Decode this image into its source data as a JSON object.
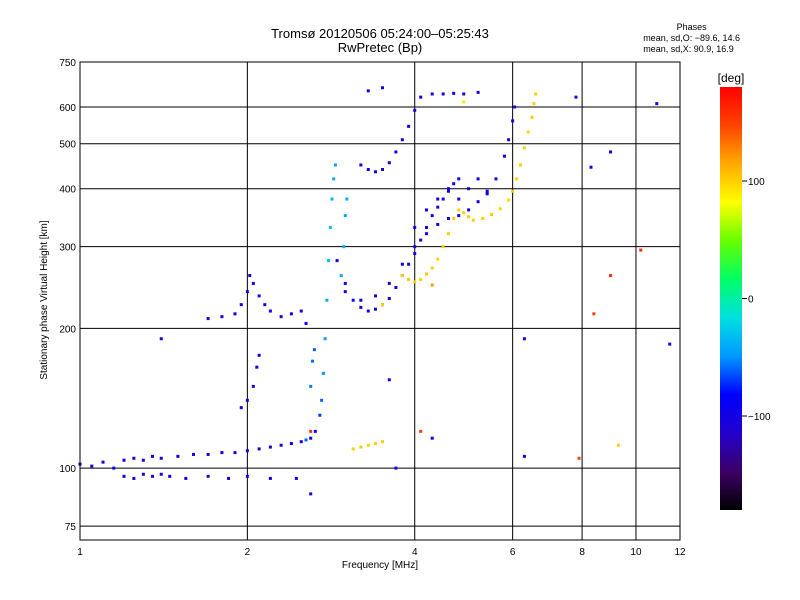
{
  "header": {
    "title": "Tromsø 20120506 05:24:00–05:25:43",
    "subtitle": "RwPretec (Bp)"
  },
  "phases": {
    "heading": "Phases",
    "line_o": "mean, sd,O: −89.6, 14.6",
    "line_x": "mean, sd,X:  90.9, 16.9"
  },
  "colorbar": {
    "label": "[deg]",
    "ticks": [
      {
        "value": 100,
        "label": "100"
      },
      {
        "value": 0,
        "label": "0"
      },
      {
        "value": -100,
        "label": "−100"
      }
    ],
    "range": [
      -180,
      180
    ],
    "colors": [
      "#000000",
      "#3d0066",
      "#2200cc",
      "#0000ff",
      "#0099ff",
      "#00e0e0",
      "#00ff66",
      "#66ff00",
      "#ffff00",
      "#ffaa00",
      "#ff4400",
      "#ff0000"
    ]
  },
  "chart_data": {
    "type": "scatter",
    "xlabel": "Frequency [MHz]",
    "ylabel": "Stationary phase Virtual Height [km]",
    "xscale": "log",
    "yscale": "log",
    "xlim": [
      1,
      12
    ],
    "ylim": [
      70,
      750
    ],
    "xticks": [
      {
        "value": 1,
        "label": "1"
      },
      {
        "value": 2,
        "label": "2"
      },
      {
        "value": 4,
        "label": "4"
      },
      {
        "value": 6,
        "label": "6"
      },
      {
        "value": 8,
        "label": "8"
      },
      {
        "value": 10,
        "label": "10"
      },
      {
        "value": 12,
        "label": "12"
      }
    ],
    "yticks": [
      {
        "value": 75,
        "label": "75"
      },
      {
        "value": 100,
        "label": "100"
      },
      {
        "value": 200,
        "label": "200"
      },
      {
        "value": 300,
        "label": "300"
      },
      {
        "value": 400,
        "label": "400"
      },
      {
        "value": 500,
        "label": "500"
      },
      {
        "value": 600,
        "label": "600"
      },
      {
        "value": 750,
        "label": "750"
      }
    ],
    "grid": true,
    "series": [
      {
        "points": [
          [
            1.0,
            102,
            -100
          ],
          [
            1.05,
            101,
            -105
          ],
          [
            1.1,
            103,
            -98
          ],
          [
            1.15,
            100,
            -102
          ],
          [
            1.2,
            104,
            -95
          ],
          [
            1.25,
            105,
            -100
          ],
          [
            1.3,
            104,
            -110
          ],
          [
            1.35,
            106,
            -97
          ],
          [
            1.4,
            105,
            -103
          ],
          [
            1.5,
            106,
            -100
          ],
          [
            1.6,
            107,
            -98
          ],
          [
            1.7,
            107,
            -105
          ],
          [
            1.8,
            108,
            -100
          ],
          [
            1.9,
            108,
            -96
          ],
          [
            2.0,
            109,
            -102
          ],
          [
            2.1,
            110,
            -99
          ],
          [
            2.2,
            111,
            -104
          ],
          [
            2.3,
            112,
            -100
          ],
          [
            2.4,
            113,
            -95
          ],
          [
            2.5,
            114,
            -100
          ],
          [
            2.6,
            116,
            -90
          ],
          [
            2.65,
            120,
            -80
          ],
          [
            2.7,
            130,
            -70
          ],
          [
            2.72,
            140,
            -60
          ],
          [
            2.74,
            160,
            -50
          ],
          [
            2.76,
            190,
            -45
          ],
          [
            2.78,
            230,
            -40
          ],
          [
            2.8,
            280,
            -35
          ],
          [
            2.82,
            330,
            -30
          ],
          [
            2.84,
            380,
            -35
          ],
          [
            2.86,
            420,
            -40
          ],
          [
            2.88,
            450,
            -45
          ],
          [
            1.2,
            96,
            -100
          ],
          [
            1.25,
            95,
            -105
          ],
          [
            1.3,
            97,
            -100
          ],
          [
            1.35,
            96,
            -98
          ],
          [
            1.4,
            97,
            -103
          ],
          [
            1.45,
            96,
            -100
          ],
          [
            1.55,
            95,
            -102
          ],
          [
            1.7,
            96,
            -100
          ],
          [
            1.85,
            95,
            -99
          ],
          [
            2.0,
            96,
            -101
          ],
          [
            1.7,
            210,
            -100
          ],
          [
            1.8,
            212,
            -98
          ],
          [
            1.9,
            215,
            -102
          ],
          [
            1.95,
            225,
            -100
          ],
          [
            2.0,
            240,
            -97
          ],
          [
            2.02,
            260,
            -103
          ],
          [
            2.05,
            250,
            -100
          ],
          [
            2.1,
            235,
            -99
          ],
          [
            2.15,
            225,
            -101
          ],
          [
            2.2,
            218,
            -100
          ],
          [
            2.3,
            212,
            -104
          ],
          [
            2.4,
            215,
            -98
          ],
          [
            2.5,
            218,
            -100
          ],
          [
            2.55,
            205,
            -95
          ],
          [
            1.95,
            135,
            -100
          ],
          [
            2.0,
            140,
            -102
          ],
          [
            2.05,
            150,
            -98
          ],
          [
            2.08,
            165,
            -100
          ],
          [
            2.1,
            175,
            -103
          ],
          [
            2.55,
            115,
            -60
          ],
          [
            2.6,
            150,
            -55
          ],
          [
            2.62,
            170,
            -58
          ],
          [
            2.64,
            180,
            -60
          ],
          [
            2.9,
            280,
            -100
          ],
          [
            3.0,
            250,
            -102
          ],
          [
            3.1,
            230,
            -98
          ],
          [
            3.2,
            222,
            -100
          ],
          [
            3.3,
            218,
            -103
          ],
          [
            3.4,
            220,
            -100
          ],
          [
            3.5,
            225,
            -97
          ],
          [
            3.6,
            232,
            -102
          ],
          [
            3.7,
            245,
            -100
          ],
          [
            3.8,
            260,
            -101
          ],
          [
            3.9,
            275,
            -99
          ],
          [
            4.0,
            290,
            -100
          ],
          [
            4.1,
            310,
            -102
          ],
          [
            4.2,
            330,
            -98
          ],
          [
            4.3,
            350,
            -100
          ],
          [
            4.4,
            365,
            -103
          ],
          [
            4.5,
            380,
            -100
          ],
          [
            4.6,
            395,
            -97
          ],
          [
            4.7,
            410,
            -102
          ],
          [
            4.8,
            420,
            -100
          ],
          [
            3.0,
            240,
            -100
          ],
          [
            3.2,
            230,
            -98
          ],
          [
            3.4,
            235,
            -102
          ],
          [
            3.6,
            250,
            -100
          ],
          [
            3.8,
            275,
            -99
          ],
          [
            4.0,
            300,
            -101
          ],
          [
            4.2,
            320,
            -100
          ],
          [
            4.4,
            335,
            -103
          ],
          [
            4.6,
            345,
            -98
          ],
          [
            4.8,
            350,
            -100
          ],
          [
            5.0,
            360,
            -102
          ],
          [
            5.2,
            375,
            -100
          ],
          [
            5.4,
            390,
            -97
          ],
          [
            5.6,
            420,
            -100
          ],
          [
            5.8,
            470,
            -102
          ],
          [
            5.9,
            510,
            -100
          ],
          [
            6.0,
            560,
            -98
          ],
          [
            6.05,
            600,
            -101
          ],
          [
            3.2,
            450,
            -100
          ],
          [
            3.3,
            440,
            -102
          ],
          [
            3.4,
            435,
            -98
          ],
          [
            3.5,
            440,
            -100
          ],
          [
            3.6,
            455,
            -103
          ],
          [
            3.7,
            480,
            -100
          ],
          [
            3.8,
            510,
            -97
          ],
          [
            3.9,
            545,
            -102
          ],
          [
            4.0,
            590,
            -100
          ],
          [
            4.1,
            630,
            -101
          ],
          [
            4.3,
            640,
            -100
          ],
          [
            4.5,
            640,
            -103
          ],
          [
            4.7,
            642,
            -98
          ],
          [
            4.9,
            640,
            -100
          ],
          [
            5.2,
            645,
            -102
          ],
          [
            2.95,
            260,
            -40
          ],
          [
            2.98,
            300,
            -38
          ],
          [
            3.0,
            350,
            -42
          ],
          [
            3.02,
            380,
            -40
          ],
          [
            4.0,
            330,
            -100
          ],
          [
            4.2,
            360,
            -102
          ],
          [
            4.4,
            380,
            -98
          ],
          [
            4.6,
            400,
            -100
          ],
          [
            4.8,
            380,
            -103
          ],
          [
            5.0,
            400,
            -100
          ],
          [
            5.2,
            420,
            -97
          ],
          [
            5.4,
            395,
            -102
          ],
          [
            1.4,
            190,
            -100
          ],
          [
            2.2,
            95,
            -100
          ],
          [
            2.45,
            95,
            -98
          ],
          [
            2.6,
            88,
            -102
          ],
          [
            3.6,
            155,
            -100
          ],
          [
            3.7,
            100,
            -100
          ],
          [
            4.3,
            116,
            -95
          ],
          [
            6.3,
            106,
            -100
          ],
          [
            6.3,
            190,
            -100
          ],
          [
            7.8,
            630,
            -100
          ],
          [
            8.3,
            445,
            -100
          ],
          [
            9.0,
            480,
            -100
          ],
          [
            11.5,
            185,
            -100
          ],
          [
            10.9,
            610,
            -100
          ],
          [
            3.3,
            650,
            -100
          ],
          [
            3.5,
            660,
            -100
          ]
        ]
      },
      {
        "points": [
          [
            3.1,
            110,
            100
          ],
          [
            3.2,
            111,
            102
          ],
          [
            3.3,
            112,
            98
          ],
          [
            3.4,
            113,
            100
          ],
          [
            3.5,
            114,
            101
          ],
          [
            3.8,
            260,
            100
          ],
          [
            3.9,
            255,
            102
          ],
          [
            4.0,
            252,
            98
          ],
          [
            4.1,
            255,
            100
          ],
          [
            4.2,
            262,
            103
          ],
          [
            4.3,
            270,
            100
          ],
          [
            4.4,
            282,
            97
          ],
          [
            4.5,
            300,
            102
          ],
          [
            4.6,
            320,
            100
          ],
          [
            4.7,
            345,
            101
          ],
          [
            4.8,
            360,
            99
          ],
          [
            4.9,
            355,
            100
          ],
          [
            5.0,
            348,
            102
          ],
          [
            5.1,
            342,
            98
          ],
          [
            5.3,
            345,
            100
          ],
          [
            5.5,
            352,
            103
          ],
          [
            5.7,
            362,
            100
          ],
          [
            5.9,
            378,
            97
          ],
          [
            6.0,
            395,
            102
          ],
          [
            6.1,
            420,
            100
          ],
          [
            6.2,
            450,
            101
          ],
          [
            6.3,
            490,
            100
          ],
          [
            6.4,
            530,
            98
          ],
          [
            6.5,
            570,
            102
          ],
          [
            6.55,
            610,
            100
          ],
          [
            6.6,
            640,
            101
          ],
          [
            4.9,
            615,
            90
          ],
          [
            3.5,
            225,
            100
          ],
          [
            4.3,
            248,
            120
          ],
          [
            4.1,
            120,
            150
          ],
          [
            2.6,
            120,
            160
          ],
          [
            8.4,
            215,
            150
          ],
          [
            9.0,
            260,
            155
          ],
          [
            10.2,
            295,
            160
          ],
          [
            7.9,
            105,
            150
          ],
          [
            9.3,
            112,
            100
          ]
        ]
      }
    ]
  }
}
